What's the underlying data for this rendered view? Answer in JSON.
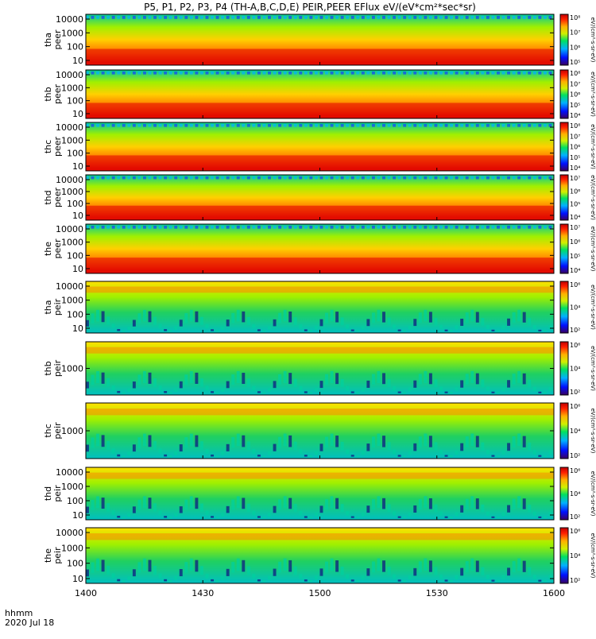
{
  "title": "P5, P1, P2, P3, P4 (TH-A,B,C,D,E) PEIR,PEER EFlux eV/(eV*cm²*sec*sr)",
  "time_label": "hhmm",
  "date_label": "2020 Jul 18",
  "x_ticks": [
    "1400",
    "1430",
    "1500",
    "1530",
    "1600"
  ],
  "chart_data": [
    {
      "type": "heatmap",
      "panel": "tha-peer",
      "probe": "tha",
      "species": "peer",
      "ylabels": [
        "tha",
        "peer"
      ],
      "yticks": [
        "10",
        "100",
        "1000",
        "10000"
      ],
      "colorbar_ticks": [
        "10⁵",
        "10⁶",
        "10⁷",
        "10⁸"
      ],
      "colorbar_label": "eV/(cm²-s-sr-eV)",
      "xrange": [
        "1400",
        "1600"
      ],
      "yscale": "log"
    },
    {
      "type": "heatmap",
      "panel": "thb-peer",
      "probe": "thb",
      "species": "peer",
      "ylabels": [
        "thb",
        "peer"
      ],
      "yticks": [
        "10",
        "100",
        "1000",
        "10000"
      ],
      "colorbar_ticks": [
        "10⁴",
        "10⁵",
        "10⁶",
        "10⁷",
        "10⁸"
      ],
      "colorbar_label": "eV/(cm²-s-sr-eV)",
      "xrange": [
        "1400",
        "1600"
      ],
      "yscale": "log"
    },
    {
      "type": "heatmap",
      "panel": "thc-peer",
      "probe": "thc",
      "species": "peer",
      "ylabels": [
        "thc",
        "peer"
      ],
      "yticks": [
        "10",
        "100",
        "1000",
        "10000"
      ],
      "colorbar_ticks": [
        "10⁴",
        "10⁵",
        "10⁶",
        "10⁷",
        "10⁸"
      ],
      "colorbar_label": "eV/(cm²-s-sr-eV)",
      "xrange": [
        "1400",
        "1600"
      ],
      "yscale": "log"
    },
    {
      "type": "heatmap",
      "panel": "thd-peer",
      "probe": "thd",
      "species": "peer",
      "ylabels": [
        "thd",
        "peer"
      ],
      "yticks": [
        "10",
        "100",
        "1000",
        "10000"
      ],
      "colorbar_ticks": [
        "10⁴",
        "10⁵",
        "10⁶",
        "10⁷"
      ],
      "colorbar_label": "eV/(cm²-s-sr-eV)",
      "xrange": [
        "1400",
        "1600"
      ],
      "yscale": "log"
    },
    {
      "type": "heatmap",
      "panel": "the-peer",
      "probe": "the",
      "species": "peer",
      "ylabels": [
        "the",
        "peer"
      ],
      "yticks": [
        "10",
        "100",
        "1000",
        "10000"
      ],
      "colorbar_ticks": [
        "10⁴",
        "10⁵",
        "10⁶",
        "10⁷"
      ],
      "colorbar_label": "eV/(cm²-s-sr-eV)",
      "xrange": [
        "1400",
        "1600"
      ],
      "yscale": "log"
    },
    {
      "type": "heatmap",
      "panel": "tha-peir",
      "probe": "tha",
      "species": "peir",
      "ylabels": [
        "tha",
        "peir"
      ],
      "yticks": [
        "10",
        "100",
        "1000",
        "10000"
      ],
      "colorbar_ticks": [
        "10²",
        "10⁴",
        "10⁶"
      ],
      "colorbar_label": "eV/(cm²-s-sr-eV)",
      "xrange": [
        "1400",
        "1600"
      ],
      "yscale": "log"
    },
    {
      "type": "heatmap",
      "panel": "thb-peir",
      "probe": "thb",
      "species": "peir",
      "ylabels": [
        "thb",
        "peir"
      ],
      "yticks": [
        "1000"
      ],
      "colorbar_ticks": [
        "10²",
        "10⁴",
        "10⁶"
      ],
      "colorbar_label": "eV/(cm²-s-sr-eV)",
      "xrange": [
        "1400",
        "1600"
      ],
      "yscale": "log"
    },
    {
      "type": "heatmap",
      "panel": "thc-peir",
      "probe": "thc",
      "species": "peir",
      "ylabels": [
        "thc",
        "peir"
      ],
      "yticks": [
        "1000"
      ],
      "colorbar_ticks": [
        "10²",
        "10⁴",
        "10⁶"
      ],
      "colorbar_label": "eV/(cm²-s-sr-eV)",
      "xrange": [
        "1400",
        "1600"
      ],
      "yscale": "log"
    },
    {
      "type": "heatmap",
      "panel": "thd-peir",
      "probe": "thd",
      "species": "peir",
      "ylabels": [
        "thd",
        "peir"
      ],
      "yticks": [
        "10",
        "100",
        "1000",
        "10000"
      ],
      "colorbar_ticks": [
        "10²",
        "10⁴",
        "10⁶"
      ],
      "colorbar_label": "eV/(cm²-s-sr-eV)",
      "xrange": [
        "1400",
        "1600"
      ],
      "yscale": "log"
    },
    {
      "type": "heatmap",
      "panel": "the-peir",
      "probe": "the",
      "species": "peir",
      "ylabels": [
        "the",
        "peir"
      ],
      "yticks": [
        "10",
        "100",
        "1000",
        "10000"
      ],
      "colorbar_ticks": [
        "10²",
        "10⁴",
        "10⁶"
      ],
      "colorbar_label": "eV/(cm²-s-sr-eV)",
      "xrange": [
        "1400",
        "1600"
      ],
      "yscale": "log"
    }
  ]
}
